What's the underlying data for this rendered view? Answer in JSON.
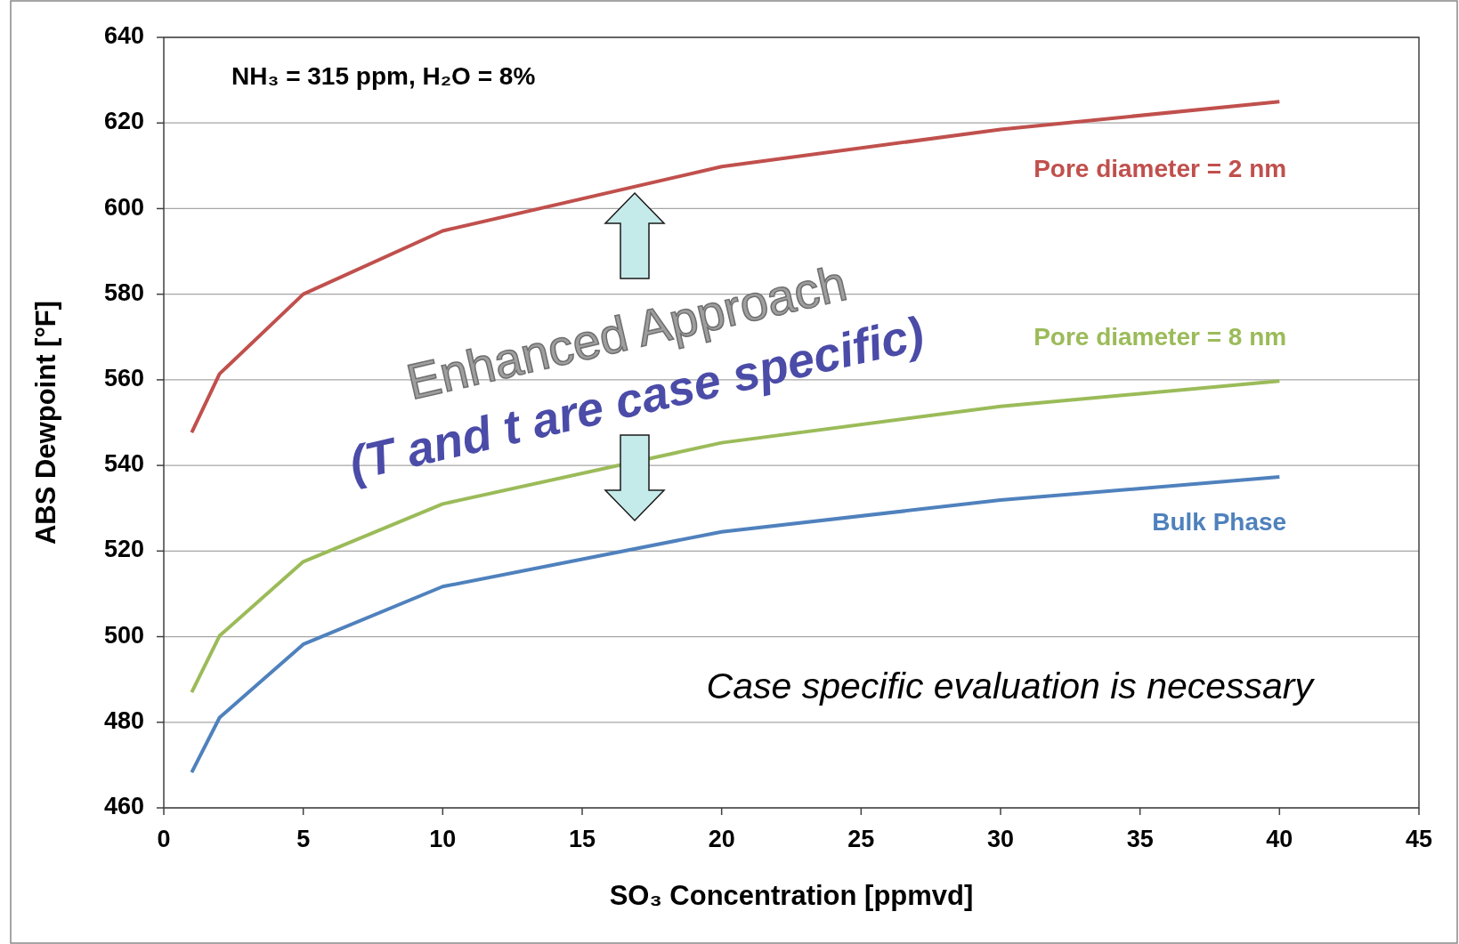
{
  "chart_data": {
    "type": "line",
    "xlabel": "SO₃ Concentration [ppmvd]",
    "ylabel": "ABS Dewpoint [°F]",
    "x": [
      1,
      2,
      5,
      10,
      20,
      30,
      40
    ],
    "series": [
      {
        "name": "Pore diameter = 2 nm",
        "color": "#c0504d",
        "values": [
          547.7,
          561.4,
          580,
          594.8,
          609.8,
          618.5,
          625
        ]
      },
      {
        "name": "Pore diameter = 8 nm",
        "color": "#9bbb59",
        "values": [
          487,
          500.2,
          517.5,
          531,
          545.3,
          553.8,
          559.7
        ]
      },
      {
        "name": "Bulk Phase",
        "color": "#4f81bd",
        "values": [
          468.3,
          481.1,
          498.2,
          511.7,
          524.5,
          531.9,
          537.3
        ]
      }
    ],
    "xlim": [
      0,
      45
    ],
    "xticks": [
      0,
      5,
      10,
      15,
      20,
      25,
      30,
      35,
      40,
      45
    ],
    "ylim": [
      460,
      640
    ],
    "yticks": [
      460,
      480,
      500,
      520,
      540,
      560,
      580,
      600,
      620,
      640
    ],
    "grid": "y",
    "marker": "none",
    "line_style": "solid",
    "annotations": [
      "NH₃ = 315 ppm, H₂O = 8%",
      "Enhanced Approach",
      "(T and t are case specific)",
      "Case specific evaluation is necessary"
    ]
  }
}
